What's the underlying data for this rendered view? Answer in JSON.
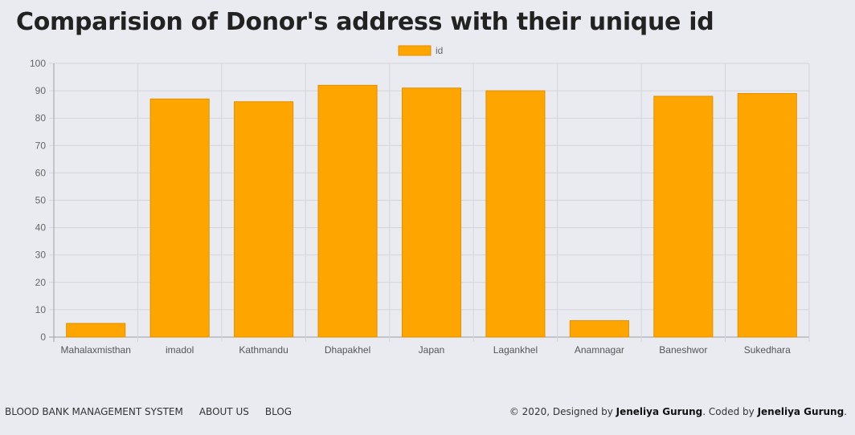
{
  "page": {
    "title": "Comparision of Donor's address with their unique id"
  },
  "chart_data": {
    "type": "bar",
    "categories": [
      "Mahalaxmisthan",
      "imadol",
      "Kathmandu",
      "Dhapakhel",
      "Japan",
      "Lagankhel",
      "Anamnagar",
      "Baneshwor",
      "Sukedhara"
    ],
    "series": [
      {
        "name": "id",
        "values": [
          5,
          87,
          86,
          92,
          91,
          90,
          6,
          88,
          89
        ],
        "color": "#ffa500",
        "border_color": "#e09000"
      }
    ],
    "ylim": [
      0,
      100
    ],
    "yticks": [
      0,
      10,
      20,
      30,
      40,
      50,
      60,
      70,
      80,
      90,
      100
    ],
    "legend_position": "top-center",
    "grid": true
  },
  "footer": {
    "nav": [
      "BLOOD BANK MANAGEMENT SYSTEM",
      "ABOUT US",
      "BLOG"
    ],
    "copyright_prefix": "© 2020, Designed by ",
    "designer": "Jeneliya Gurung",
    "coded_by_text": ". Coded by ",
    "coder": "Jeneliya Gurung",
    "suffix": "."
  }
}
